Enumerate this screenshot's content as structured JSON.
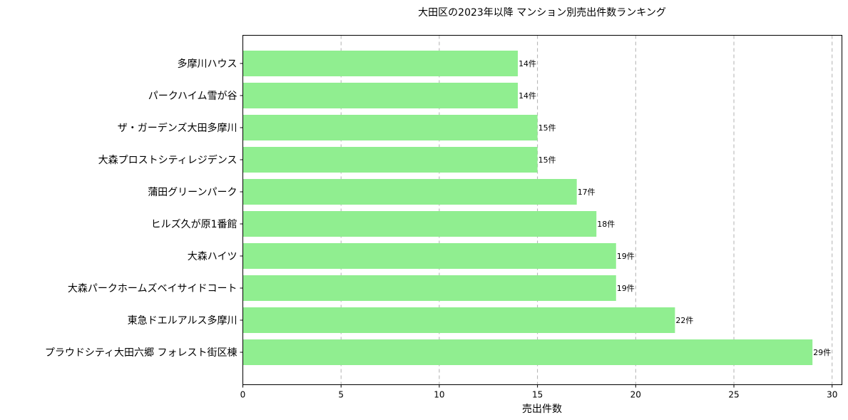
{
  "chart_data": {
    "type": "bar",
    "orientation": "horizontal",
    "title": "大田区の2023年以降 マンション別売出件数ランキング",
    "xlabel": "売出件数",
    "ylabel": "",
    "xlim": [
      0,
      30.5
    ],
    "x_ticks": [
      0,
      5,
      10,
      15,
      20,
      25,
      30
    ],
    "grid": "x-dashed",
    "bar_color": "#90ee90",
    "value_suffix": "件",
    "categories": [
      "多摩川ハウス",
      "パークハイム雪が谷",
      "ザ・ガーデンズ大田多摩川",
      "大森プロストシティレジデンス",
      "蒲田グリーンパーク",
      "ヒルズ久が原1番館",
      "大森ハイツ",
      "大森パークホームズベイサイドコート",
      "東急ドエルアルス多摩川",
      "プラウドシティ大田六郷 フォレスト街区棟"
    ],
    "values": [
      14,
      14,
      15,
      15,
      17,
      18,
      19,
      19,
      22,
      29
    ],
    "data_labels": [
      "14件",
      "14件",
      "15件",
      "15件",
      "17件",
      "18件",
      "19件",
      "19件",
      "22件",
      "29件"
    ]
  }
}
